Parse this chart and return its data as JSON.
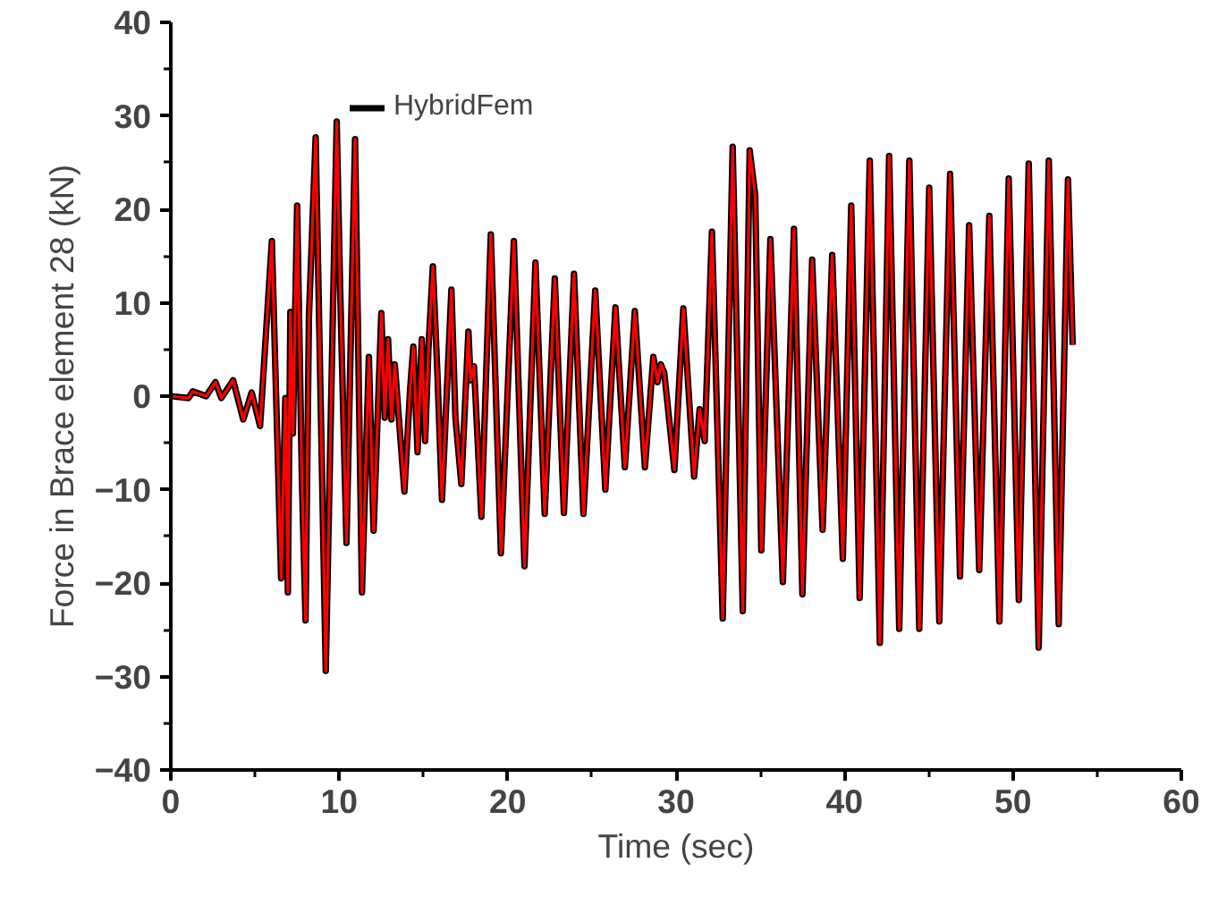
{
  "chart_data": {
    "type": "line",
    "xlabel": "Time (sec)",
    "ylabel": "Force in Brace element 28 (kN)",
    "xlim": [
      0,
      60
    ],
    "ylim": [
      -40,
      40
    ],
    "xticks": [
      0,
      10,
      20,
      30,
      40,
      50,
      60
    ],
    "yticks": [
      -40,
      -30,
      -20,
      -10,
      0,
      10,
      20,
      30,
      40
    ],
    "grid": false,
    "legend": "top left",
    "marker": "none",
    "line_style": "solid",
    "x": [
      0,
      1.05,
      1.3,
      2.1,
      2.65,
      3.0,
      3.7,
      4.3,
      4.8,
      5.3,
      6.0,
      6.55,
      6.8,
      6.95,
      7.1,
      7.25,
      7.5,
      7.78,
      8.0,
      8.2,
      8.6,
      9.2,
      9.85,
      10.05,
      10.43,
      10.94,
      11.35,
      11.76,
      12.04,
      12.5,
      12.7,
      12.9,
      13.1,
      13.3,
      13.87,
      14.2,
      14.4,
      14.65,
      14.9,
      15.1,
      15.3,
      15.56,
      15.83,
      16.1,
      16.66,
      16.9,
      17.25,
      17.67,
      17.8,
      18.0,
      18.44,
      19.0,
      19.6,
      20.37,
      21.0,
      21.65,
      22.2,
      22.8,
      23.34,
      23.94,
      24.5,
      25.2,
      25.8,
      26.4,
      26.96,
      27.55,
      28.15,
      28.65,
      28.9,
      29.1,
      29.3,
      29.9,
      30.43,
      31.07,
      31.4,
      31.7,
      32.13,
      32.77,
      33.36,
      33.96,
      34.37,
      34.7,
      35.06,
      35.6,
      36.34,
      37.0,
      37.5,
      38.08,
      38.7,
      39.27,
      39.9,
      40.4,
      40.9,
      41.5,
      42.1,
      42.65,
      43.25,
      43.85,
      44.44,
      45.03,
      45.63,
      46.27,
      46.86,
      47.4,
      48.0,
      48.6,
      49.2,
      49.75,
      50.35,
      50.94,
      51.53,
      52.13,
      52.72,
      53.27,
      53.55
    ],
    "series": [
      {
        "name": "HybridFem",
        "color": "#000000",
        "values": [
          0,
          -0.2,
          0.5,
          0,
          1.5,
          -0.2,
          1.7,
          -2.5,
          0.4,
          -3.2,
          16.6,
          -19.5,
          -0.2,
          -21,
          9,
          -4,
          20.4,
          -8.6,
          -24,
          8.4,
          27.7,
          -29.4,
          29.4,
          11.8,
          -15.7,
          27.5,
          -21,
          4.2,
          -14.4,
          8.9,
          -2.3,
          6.1,
          -2.5,
          3.4,
          -10.2,
          0.5,
          5.3,
          -6,
          6.1,
          -4.8,
          5.2,
          13.9,
          2.4,
          -11.1,
          11.4,
          -2.3,
          -9.4,
          6.9,
          1.7,
          3.2,
          -12.9,
          17.3,
          -16.8,
          16.6,
          -18.2,
          14.3,
          -12.6,
          12.6,
          -12.5,
          13.1,
          -12.6,
          11.3,
          -10,
          9.5,
          -7.6,
          9.1,
          -7.6,
          4.2,
          1.5,
          3.4,
          2.5,
          -7.9,
          9.4,
          -8.6,
          -1.4,
          -4.8,
          17.6,
          -23.8,
          26.7,
          -23,
          26.3,
          21.5,
          -16.5,
          16.8,
          -19.9,
          17.9,
          -21.2,
          14.6,
          -14.3,
          15.1,
          -17.4,
          20.4,
          -21.6,
          25.2,
          -26.4,
          25.7,
          -24.9,
          25.2,
          -24.9,
          22.3,
          -24.1,
          23.8,
          -19.3,
          18.3,
          -18.6,
          19.3,
          -24.1,
          23.3,
          -21.8,
          24.9,
          -26.9,
          25.2,
          -24.4,
          23.2,
          5.5
        ]
      },
      {
        "color": "#ff0000",
        "values": [
          0,
          -0.2,
          0.5,
          0,
          1.5,
          -0.2,
          1.7,
          -2.5,
          0.4,
          -3.2,
          16.6,
          -19.5,
          -0.2,
          -21,
          9,
          -4,
          20.4,
          -8.6,
          -24,
          8.4,
          27.7,
          -29.4,
          29.4,
          11.8,
          -15.7,
          27.5,
          -21,
          4.2,
          -14.4,
          8.9,
          -2.3,
          6.1,
          -2.5,
          3.4,
          -10.2,
          0.5,
          5.3,
          -6,
          6.1,
          -4.8,
          5.2,
          13.9,
          2.4,
          -11.1,
          11.4,
          -2.3,
          -9.4,
          6.9,
          1.7,
          3.2,
          -12.9,
          17.3,
          -16.8,
          16.6,
          -18.2,
          14.3,
          -12.6,
          12.6,
          -12.5,
          13.1,
          -12.6,
          11.3,
          -10,
          9.5,
          -7.6,
          9.1,
          -7.6,
          4.2,
          1.5,
          3.4,
          2.5,
          -7.9,
          9.4,
          -8.6,
          -1.4,
          -4.8,
          17.6,
          -23.8,
          26.7,
          -23,
          26.3,
          21.5,
          -16.5,
          16.8,
          -19.9,
          17.9,
          -21.2,
          14.6,
          -14.3,
          15.1,
          -17.4,
          20.4,
          -21.6,
          25.2,
          -26.4,
          25.7,
          -24.9,
          25.2,
          -24.9,
          22.3,
          -24.1,
          23.8,
          -19.3,
          18.3,
          -18.6,
          19.3,
          -24.1,
          23.3,
          -21.8,
          24.9,
          -26.9,
          25.2,
          -24.4,
          23.2,
          5.5
        ]
      }
    ]
  }
}
